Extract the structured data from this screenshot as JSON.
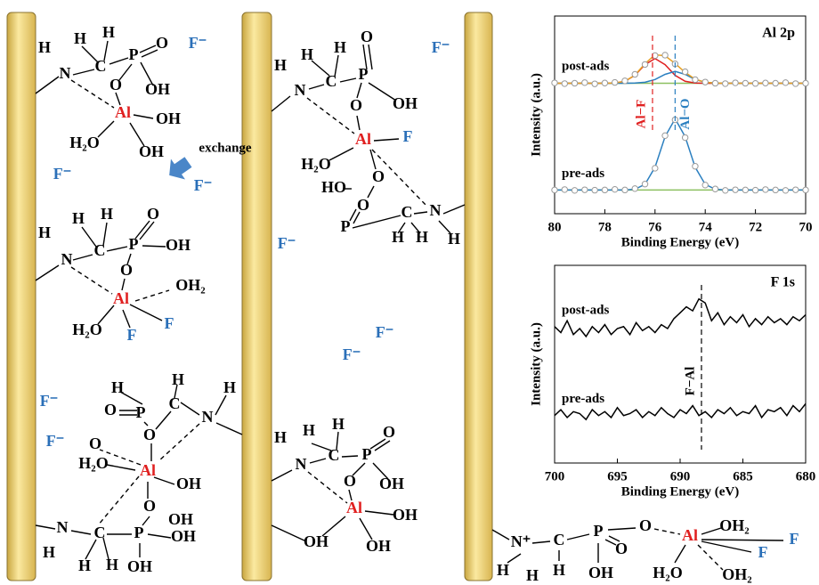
{
  "diagram": {
    "labels": [
      "H",
      "N",
      "H",
      "H",
      "C",
      "P",
      "O",
      "O",
      "OH",
      "Al",
      "OH",
      "H₂O",
      "OH",
      "F⁻",
      "F⁻",
      "F⁻",
      "exchange",
      "H",
      "H",
      "H",
      "O",
      "N",
      "C",
      "P",
      "OH",
      "O",
      "Al",
      "OH₂",
      "H₂O",
      "F",
      "F",
      "H",
      "H",
      "H",
      "O",
      "P",
      "C",
      "N",
      "O",
      "O",
      "H₂O",
      "Al",
      "OH",
      "O",
      "OH",
      "N",
      "C",
      "P",
      "OH",
      "H",
      "H",
      "H",
      "OH",
      "F⁻",
      "F⁻",
      "F⁻",
      "F⁻",
      "F⁻",
      "F⁻",
      "H",
      "H",
      "H",
      "O",
      "N",
      "C",
      "P",
      "OH",
      "O",
      "Al",
      "F",
      "H₂O",
      "O",
      "HO",
      "O",
      "P",
      "C",
      "N",
      "H",
      "H",
      "H",
      "H",
      "H",
      "H",
      "O",
      "N",
      "C",
      "P",
      "O",
      "OH",
      "Al",
      "OH",
      "OH",
      "OH",
      "N⁺",
      "H",
      "C",
      "H",
      "P",
      "O",
      "OH",
      "O",
      "Al",
      "OH₂",
      "F",
      "F",
      "H₂O",
      "OH₂",
      "H"
    ]
  },
  "chart_data": [
    {
      "type": "line",
      "title": "Al 2p",
      "xlabel": "Binding Energy (eV)",
      "ylabel": "Intensity (a.u.)",
      "x": [
        80,
        79.6,
        79.2,
        78.8,
        78.4,
        78,
        77.6,
        77.2,
        76.8,
        76.4,
        76,
        75.6,
        75.2,
        74.8,
        74.4,
        74,
        73.6,
        73.2,
        72.8,
        72.4,
        72,
        71.6,
        71.2,
        70.8,
        70.4,
        70
      ],
      "xlim": [
        80,
        70
      ],
      "xticks": [
        80,
        78,
        76,
        74,
        72,
        70
      ],
      "ylim": [
        0,
        10
      ],
      "series": [
        {
          "color": "#8cc060",
          "marker": "none",
          "values": [
            6.6,
            6.6,
            6.6,
            6.6,
            6.6,
            6.6,
            6.6,
            6.6,
            6.6,
            6.6,
            6.6,
            6.6,
            6.6,
            6.6,
            6.6,
            6.6,
            6.6,
            6.6,
            6.6,
            6.6,
            6.6,
            6.6,
            6.6,
            6.6,
            6.6,
            6.6
          ]
        },
        {
          "color": "#e02020",
          "marker": "none",
          "values": [
            6.6,
            6.6,
            6.6,
            6.6,
            6.6,
            6.6,
            6.61,
            6.7,
            7.0,
            7.54,
            7.85,
            7.54,
            7.0,
            6.7,
            6.61,
            6.6,
            6.6,
            6.6,
            6.6,
            6.6,
            6.6,
            6.6,
            6.6,
            6.6,
            6.6,
            6.6
          ]
        },
        {
          "color": "#2a7fc0",
          "marker": "none",
          "values": [
            6.6,
            6.6,
            6.6,
            6.6,
            6.6,
            6.6,
            6.6,
            6.6,
            6.61,
            6.65,
            6.79,
            7.05,
            7.2,
            7.05,
            6.79,
            6.65,
            6.61,
            6.6,
            6.6,
            6.6,
            6.6,
            6.6,
            6.6,
            6.6,
            6.6,
            6.6
          ]
        },
        {
          "color": "#e8a020",
          "marker": "none",
          "values": [
            6.6,
            6.6,
            6.6,
            6.6,
            6.6,
            6.6,
            6.61,
            6.7,
            7.01,
            7.59,
            8.04,
            7.99,
            7.6,
            7.15,
            6.8,
            6.65,
            6.61,
            6.6,
            6.6,
            6.6,
            6.6,
            6.6,
            6.6,
            6.6,
            6.6,
            6.6
          ]
        },
        {
          "name": "post-ads",
          "color": "#999999",
          "marker": "circle",
          "values": [
            6.62,
            6.58,
            6.6,
            6.63,
            6.57,
            6.61,
            6.64,
            6.72,
            7.05,
            7.55,
            8.0,
            8.02,
            7.58,
            7.18,
            6.78,
            6.66,
            6.6,
            6.58,
            6.62,
            6.6,
            6.59,
            6.61,
            6.6,
            6.63,
            6.58,
            6.6
          ]
        },
        {
          "color": "#8cc060",
          "marker": "none",
          "values": [
            1.2,
            1.2,
            1.2,
            1.2,
            1.2,
            1.2,
            1.2,
            1.2,
            1.2,
            1.2,
            1.2,
            1.2,
            1.2,
            1.2,
            1.2,
            1.2,
            1.2,
            1.2,
            1.2,
            1.2,
            1.2,
            1.2,
            1.2,
            1.2,
            1.2,
            1.2
          ]
        },
        {
          "color": "#2a7fc0",
          "marker": "none",
          "values": [
            1.2,
            1.2,
            1.2,
            1.2,
            1.2,
            1.2,
            1.2,
            1.2,
            1.24,
            1.48,
            2.35,
            3.9,
            4.8,
            3.9,
            2.35,
            1.48,
            1.24,
            1.2,
            1.2,
            1.2,
            1.2,
            1.2,
            1.2,
            1.2,
            1.2,
            1.2
          ]
        },
        {
          "name": "pre-ads",
          "color": "#999999",
          "marker": "circle",
          "values": [
            1.2,
            1.22,
            1.18,
            1.21,
            1.19,
            1.2,
            1.23,
            1.2,
            1.27,
            1.5,
            2.3,
            3.95,
            4.75,
            3.85,
            2.4,
            1.45,
            1.25,
            1.18,
            1.21,
            1.2,
            1.19,
            1.22,
            1.2,
            1.18,
            1.21,
            1.2
          ]
        }
      ],
      "annotations": [
        {
          "text": "Al−F",
          "x": 76.1,
          "color": "#e02020"
        },
        {
          "text": "Al−O",
          "x": 75.2,
          "color": "#2a7fc0"
        }
      ]
    },
    {
      "type": "line",
      "title": "F 1s",
      "xlabel": "Binding Energy (eV)",
      "ylabel": "Intensity (a.u.)",
      "x": [
        700,
        699.5,
        699,
        698.5,
        698,
        697.5,
        697,
        696.5,
        696,
        695.5,
        695,
        694.5,
        694,
        693.5,
        693,
        692.5,
        692,
        691.5,
        691,
        690.5,
        690,
        689.5,
        689,
        688.5,
        688,
        687.5,
        687,
        686.5,
        686,
        685.5,
        685,
        684.5,
        684,
        683.5,
        683,
        682.5,
        682,
        681.5,
        681,
        680.5,
        680
      ],
      "xlim": [
        700,
        680
      ],
      "xticks": [
        700,
        695,
        690,
        685,
        680
      ],
      "ylim": [
        0,
        10
      ],
      "series": [
        {
          "name": "post-ads",
          "color": "#000000",
          "marker": "none",
          "values": [
            6.9,
            6.6,
            7.2,
            6.5,
            6.8,
            6.4,
            6.9,
            6.6,
            7.0,
            6.5,
            6.8,
            6.9,
            6.5,
            7.1,
            6.7,
            6.9,
            6.6,
            7.0,
            6.8,
            7.3,
            7.6,
            7.9,
            7.7,
            8.3,
            8.1,
            7.2,
            7.6,
            7.0,
            7.4,
            7.1,
            7.5,
            6.9,
            7.3,
            7.0,
            7.4,
            7.1,
            7.3,
            7.0,
            7.4,
            7.2,
            7.5
          ]
        },
        {
          "name": "pre-ads",
          "color": "#000000",
          "marker": "none",
          "values": [
            2.4,
            2.7,
            2.3,
            2.6,
            2.5,
            2.2,
            2.7,
            2.4,
            2.6,
            2.3,
            2.8,
            2.4,
            2.5,
            2.7,
            2.3,
            2.6,
            2.4,
            2.8,
            2.5,
            2.3,
            2.7,
            2.5,
            2.9,
            2.4,
            2.6,
            2.3,
            2.7,
            2.5,
            2.8,
            2.4,
            2.6,
            2.5,
            2.9,
            2.3,
            2.7,
            2.6,
            2.8,
            2.4,
            2.9,
            2.6,
            3.0
          ]
        }
      ],
      "annotations": [
        {
          "text": "F−Al",
          "x": 688.3,
          "color": "#000000"
        }
      ]
    }
  ]
}
